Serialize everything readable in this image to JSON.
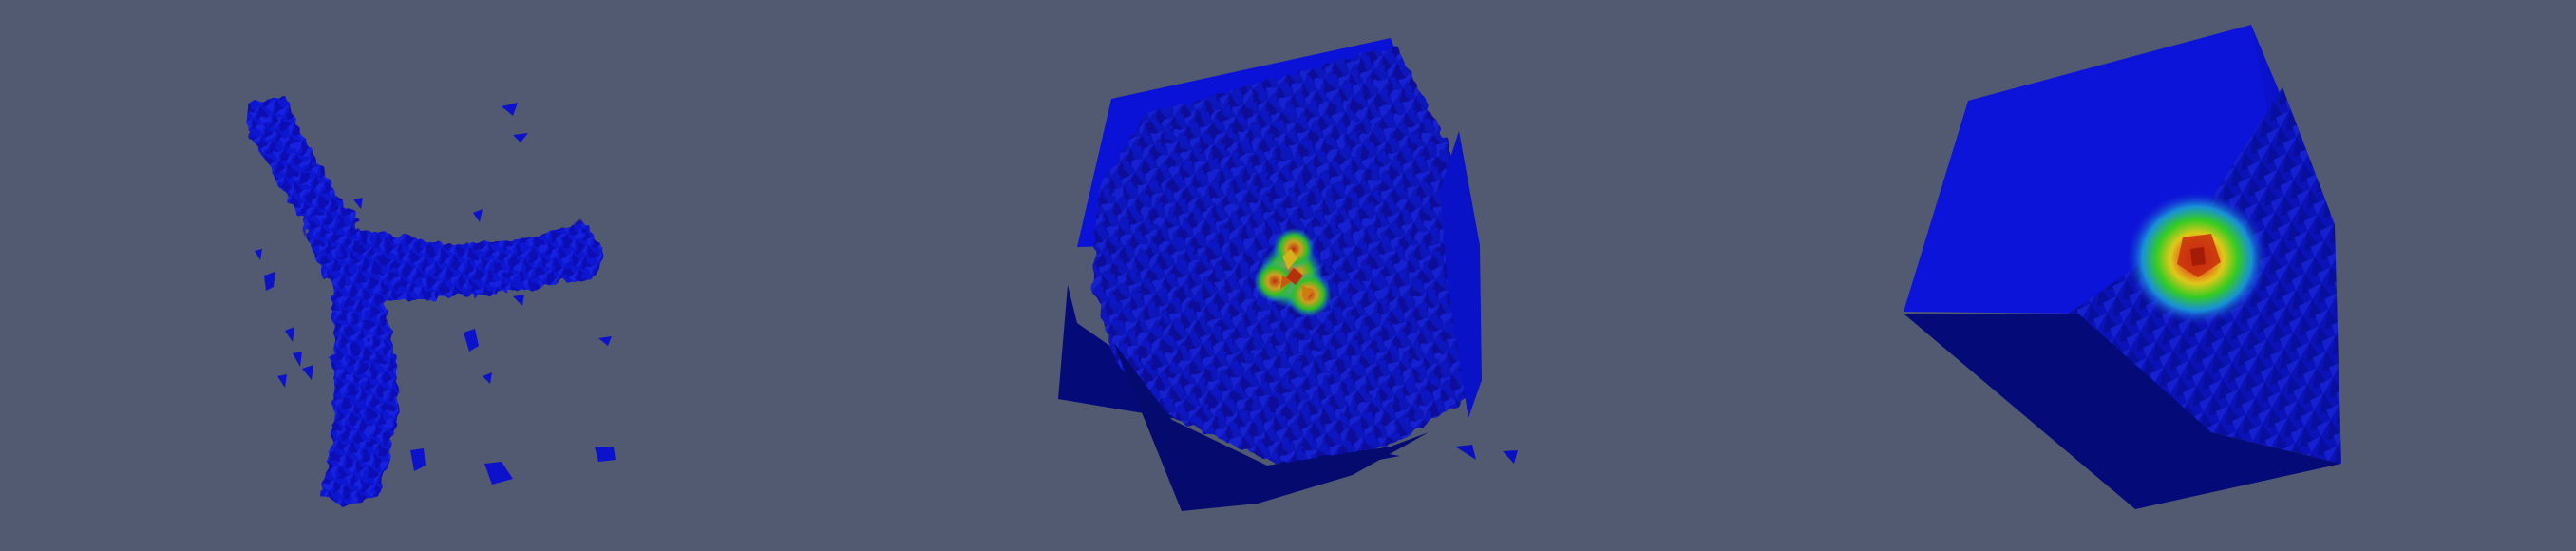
{
  "scene": {
    "background": "#525a72",
    "colors": {
      "low": "#0a0fc8",
      "mid_low": "#1530e0",
      "dark_face": "#040a78",
      "shadow": "#020758",
      "green": "#2ec81e",
      "yellow": "#d8d21a",
      "orange": "#e07a12",
      "red": "#c8240a"
    },
    "panels": [
      {
        "id": "panel-1",
        "content": "isosurface-tripod-with-fragments"
      },
      {
        "id": "panel-2",
        "content": "cube-volume-with-tripod-hotspot"
      },
      {
        "id": "panel-3",
        "content": "clipped-cube-with-radial-hotspot"
      }
    ]
  }
}
